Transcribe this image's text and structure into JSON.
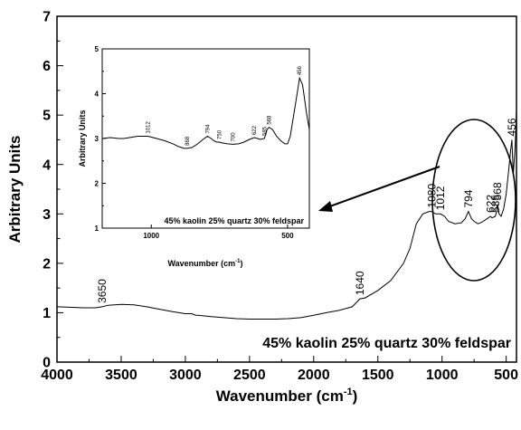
{
  "chart_data": [
    {
      "type": "line",
      "xlabel": "Wavenumber (cm",
      "xlabel_sup": "-1",
      "xlabel_close": ")",
      "ylabel": "Arbitrary Units",
      "xlim": [
        4000,
        420
      ],
      "ylim": [
        0,
        7
      ],
      "x_axis_reversed": true,
      "xticks": [
        4000,
        3500,
        3000,
        2500,
        2000,
        1500,
        1000,
        500
      ],
      "xtick_labels": [
        "4000",
        "3500",
        "3000",
        "2500",
        "2000",
        "1500",
        "1000",
        "500"
      ],
      "yticks": [
        0,
        1,
        2,
        3,
        4,
        5,
        6,
        7
      ],
      "ytick_labels": [
        "0",
        "1",
        "2",
        "3",
        "4",
        "5",
        "6",
        "7"
      ],
      "annotation": "45% kaolin 25% quartz 30% feldspar",
      "series": [
        {
          "x": [
            4000,
            3900,
            3800,
            3700,
            3650,
            3600,
            3500,
            3400,
            3300,
            3200,
            3100,
            3000,
            2950,
            2920,
            2900,
            2800,
            2700,
            2600,
            2500,
            2400,
            2300,
            2200,
            2100,
            2000,
            1900,
            1800,
            1700,
            1640,
            1600,
            1500,
            1400,
            1300,
            1250,
            1200,
            1150,
            1100,
            1080,
            1050,
            1012,
            980,
            950,
            900,
            850,
            820,
            794,
            770,
            750,
            720,
            700,
            680,
            650,
            622,
            610,
            585,
            575,
            568,
            555,
            540,
            520,
            500,
            480,
            465,
            456,
            445,
            430,
            420
          ],
          "y": [
            1.12,
            1.11,
            1.1,
            1.1,
            1.12,
            1.15,
            1.17,
            1.16,
            1.12,
            1.07,
            1.02,
            0.98,
            0.98,
            0.95,
            0.95,
            0.92,
            0.9,
            0.88,
            0.87,
            0.87,
            0.87,
            0.88,
            0.9,
            0.95,
            1.0,
            1.05,
            1.12,
            1.28,
            1.3,
            1.45,
            1.65,
            2.0,
            2.3,
            2.8,
            3.0,
            3.05,
            3.05,
            3.0,
            3.0,
            2.95,
            2.85,
            2.8,
            2.82,
            2.9,
            3.05,
            2.9,
            2.85,
            2.8,
            2.82,
            2.85,
            2.9,
            2.95,
            2.92,
            2.95,
            3.05,
            3.2,
            3.0,
            2.95,
            3.1,
            3.4,
            3.9,
            4.3,
            4.5,
            3.8,
            4.4,
            5.1
          ]
        }
      ],
      "peak_labels": [
        {
          "x": 3650,
          "y": 1.12,
          "text": "3650"
        },
        {
          "x": 1640,
          "y": 1.28,
          "text": "1640"
        },
        {
          "x": 1080,
          "y": 3.05,
          "text": "1080"
        },
        {
          "x": 1012,
          "y": 3.0,
          "text": "1012"
        },
        {
          "x": 794,
          "y": 3.05,
          "text": "794"
        },
        {
          "x": 622,
          "y": 2.95,
          "text": "622"
        },
        {
          "x": 585,
          "y": 2.95,
          "text": "585"
        },
        {
          "x": 568,
          "y": 3.2,
          "text": "568"
        },
        {
          "x": 456,
          "y": 4.5,
          "text": "456"
        }
      ]
    },
    {
      "type": "line",
      "role": "inset",
      "xlabel": "Wavenumber (cm",
      "xlabel_sup": "-1",
      "xlabel_close": ")",
      "ylabel": "Arbitrary Units",
      "xlim": [
        1180,
        420
      ],
      "ylim": [
        1,
        5
      ],
      "x_axis_reversed": true,
      "xticks": [
        1000,
        500
      ],
      "xtick_labels": [
        "1000",
        "500"
      ],
      "yticks": [
        1,
        2,
        3,
        4,
        5
      ],
      "ytick_labels": [
        "1",
        "2",
        "3",
        "4",
        "5"
      ],
      "annotation": "45% kaolin 25% quartz 30% feldspar",
      "series": [
        {
          "x": [
            1180,
            1150,
            1120,
            1100,
            1080,
            1050,
            1012,
            980,
            950,
            920,
            900,
            880,
            868,
            850,
            830,
            810,
            794,
            780,
            770,
            760,
            750,
            740,
            720,
            700,
            680,
            660,
            640,
            622,
            610,
            600,
            585,
            575,
            568,
            555,
            540,
            525,
            510,
            500,
            490,
            470,
            456,
            445,
            430,
            420
          ],
          "y": [
            3.0,
            3.02,
            3.0,
            3.0,
            3.02,
            3.05,
            3.05,
            3.0,
            2.95,
            2.88,
            2.82,
            2.78,
            2.78,
            2.8,
            2.88,
            2.98,
            3.05,
            3.0,
            2.95,
            2.92,
            2.92,
            2.9,
            2.88,
            2.87,
            2.88,
            2.92,
            2.98,
            3.02,
            3.0,
            2.98,
            3.0,
            3.2,
            3.25,
            3.2,
            3.05,
            2.95,
            2.88,
            2.88,
            3.05,
            3.8,
            4.35,
            4.2,
            3.55,
            3.2
          ]
        }
      ],
      "peak_labels": [
        {
          "x": 1012,
          "y": 3.05,
          "text": "1012"
        },
        {
          "x": 868,
          "y": 2.78,
          "text": "868"
        },
        {
          "x": 794,
          "y": 3.05,
          "text": "794"
        },
        {
          "x": 750,
          "y": 2.92,
          "text": "750"
        },
        {
          "x": 700,
          "y": 2.87,
          "text": "700"
        },
        {
          "x": 622,
          "y": 3.02,
          "text": "622"
        },
        {
          "x": 585,
          "y": 3.0,
          "text": "585"
        },
        {
          "x": 568,
          "y": 3.25,
          "text": "568"
        },
        {
          "x": 456,
          "y": 4.35,
          "text": "456"
        }
      ]
    }
  ]
}
